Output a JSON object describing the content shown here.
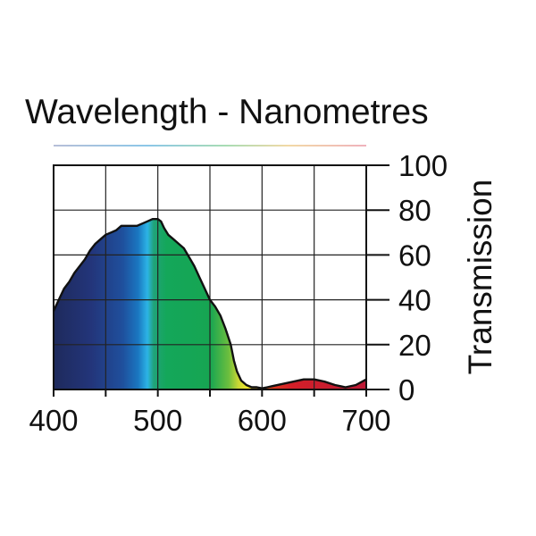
{
  "chart_data": {
    "type": "area",
    "title": "Wavelength - Nanometres",
    "xlabel": "",
    "ylabel": "Transmission",
    "xlim": [
      400,
      700
    ],
    "ylim": [
      0,
      100
    ],
    "x_ticks": [
      "400",
      "500",
      "600",
      "700"
    ],
    "y_ticks": [
      "0",
      "20",
      "40",
      "60",
      "80",
      "100"
    ],
    "grid": true,
    "series": [
      {
        "name": "Transmission",
        "x": [
          400,
          405,
          410,
          415,
          420,
          425,
          430,
          435,
          440,
          445,
          450,
          455,
          460,
          465,
          470,
          475,
          480,
          485,
          490,
          495,
          500,
          503,
          506,
          510,
          515,
          520,
          525,
          530,
          535,
          540,
          545,
          550,
          555,
          560,
          565,
          570,
          573,
          576,
          580,
          585,
          590,
          595,
          600,
          605,
          610,
          620,
          630,
          640,
          650,
          660,
          670,
          680,
          690,
          700
        ],
        "values": [
          35,
          40,
          45,
          48,
          52,
          55,
          58,
          62,
          65,
          67,
          69,
          70,
          71,
          73,
          73,
          73,
          73,
          74,
          75,
          76,
          76,
          75,
          72,
          69,
          67,
          65,
          63,
          59,
          55,
          50,
          45,
          40,
          37,
          33,
          27,
          20,
          13,
          8,
          4,
          2,
          1,
          1,
          0.5,
          1,
          1.5,
          2.5,
          3.5,
          4.5,
          4.5,
          3.5,
          2,
          1,
          2,
          4.5
        ]
      }
    ]
  }
}
